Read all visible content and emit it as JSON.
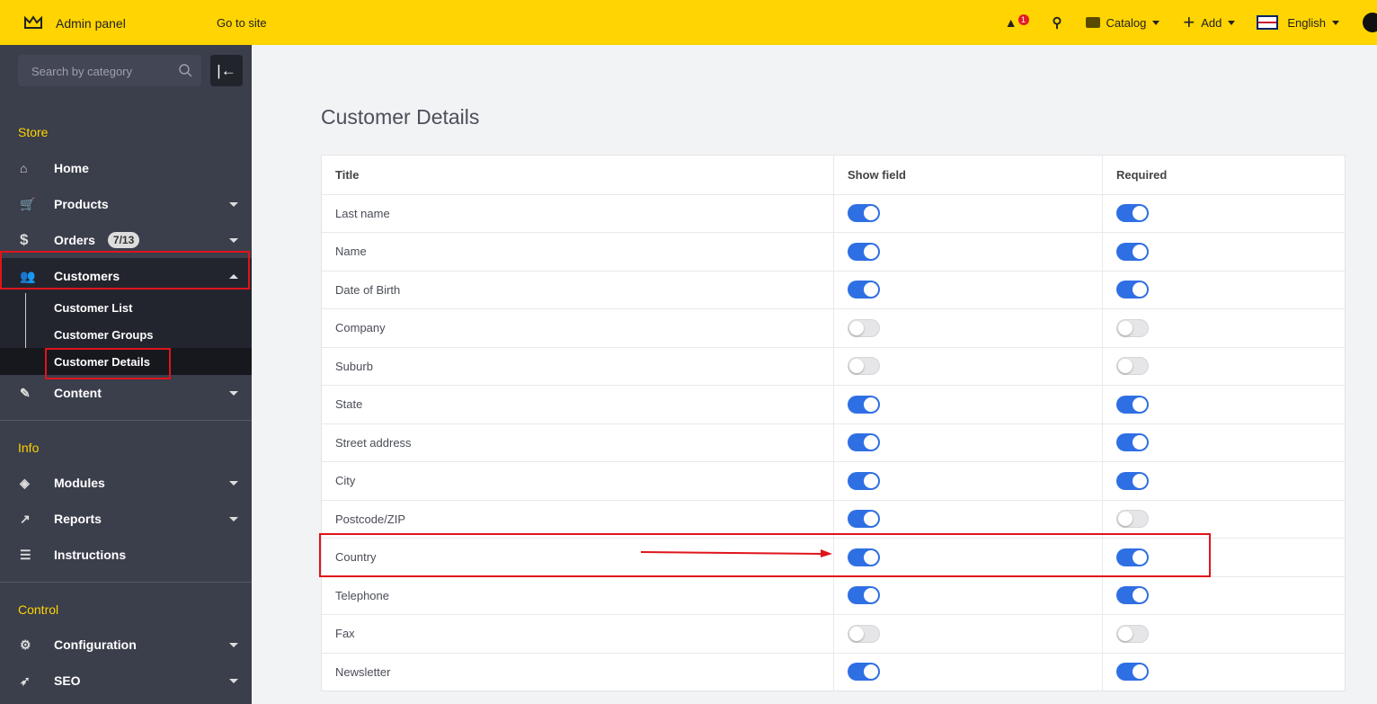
{
  "header": {
    "brand": "Admin panel",
    "go_to_site": "Go to site",
    "alert_count": "1",
    "catalog": "Catalog",
    "add": "Add",
    "language": "English"
  },
  "sidebar": {
    "search_placeholder": "Search by category",
    "sections": {
      "store": "Store",
      "info": "Info",
      "control": "Control"
    },
    "items": [
      {
        "label": "Home",
        "icon": "home-icon"
      },
      {
        "label": "Products",
        "icon": "cart-icon"
      },
      {
        "label": "Orders",
        "icon": "dollar-icon",
        "badge": "7/13"
      },
      {
        "label": "Customers",
        "icon": "users-icon"
      },
      {
        "label": "Content",
        "icon": "pencil-icon"
      },
      {
        "label": "Modules",
        "icon": "layers-icon"
      },
      {
        "label": "Reports",
        "icon": "chart-icon"
      },
      {
        "label": "Instructions",
        "icon": "list-icon"
      },
      {
        "label": "Configuration",
        "icon": "gear-icon"
      },
      {
        "label": "SEO",
        "icon": "rocket-icon"
      }
    ],
    "customers_sub": [
      "Customer List",
      "Customer Groups",
      "Customer Details"
    ]
  },
  "page": {
    "title": "Customer Details",
    "columns": [
      "Title",
      "Show field",
      "Required"
    ],
    "rows": [
      {
        "title": "Last name",
        "show": true,
        "required": true
      },
      {
        "title": "Name",
        "show": true,
        "required": true
      },
      {
        "title": "Date of Birth",
        "show": true,
        "required": true
      },
      {
        "title": "Company",
        "show": false,
        "required": false
      },
      {
        "title": "Suburb",
        "show": false,
        "required": false
      },
      {
        "title": "State",
        "show": true,
        "required": true
      },
      {
        "title": "Street address",
        "show": true,
        "required": true
      },
      {
        "title": "City",
        "show": true,
        "required": true
      },
      {
        "title": "Postcode/ZIP",
        "show": true,
        "required": false
      },
      {
        "title": "Country",
        "show": true,
        "required": true
      },
      {
        "title": "Telephone",
        "show": true,
        "required": true
      },
      {
        "title": "Fax",
        "show": false,
        "required": false
      },
      {
        "title": "Newsletter",
        "show": true,
        "required": true
      }
    ]
  },
  "colors": {
    "accent": "#ffd400",
    "toggle_on": "#2f6fe4",
    "annotation": "#e0141b",
    "sidebar": "#3b3e4b"
  }
}
